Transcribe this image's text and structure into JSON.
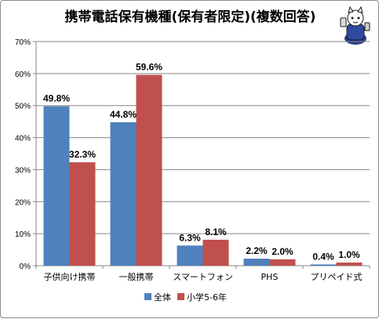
{
  "chart_data": {
    "type": "bar",
    "title": "携帯電話保有機種(保有者限定)(複数回答)",
    "categories": [
      "子供向け携帯",
      "一般携帯",
      "スマートフォン",
      "PHS",
      "プリペイド式"
    ],
    "series": [
      {
        "name": "全体",
        "values": [
          49.8,
          44.8,
          6.3,
          2.2,
          0.4
        ],
        "labels": [
          "49.8%",
          "44.8%",
          "6.3%",
          "2.2%",
          "0.4%"
        ]
      },
      {
        "name": "小学5-6年",
        "values": [
          32.3,
          59.6,
          8.1,
          2.0,
          1.0
        ],
        "labels": [
          "32.3%",
          "59.6%",
          "8.1%",
          "2.0%",
          "1.0%"
        ]
      }
    ],
    "ylim": [
      0,
      70
    ],
    "yticks": [
      "0%",
      "10%",
      "20%",
      "30%",
      "40%",
      "50%",
      "60%",
      "70%"
    ],
    "grid": true,
    "legend": "bottom",
    "colors": [
      "#4f81bd",
      "#c0504d"
    ],
    "xlabel": "",
    "ylabel": ""
  }
}
